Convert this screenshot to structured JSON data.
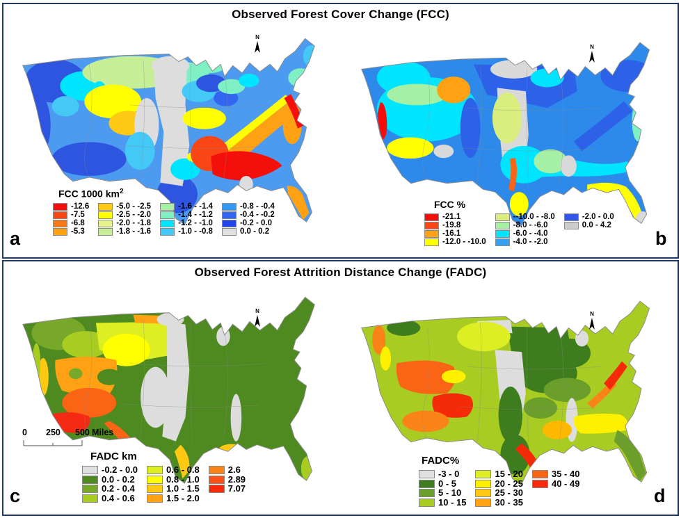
{
  "north_label": "N",
  "colors": {
    "panel_border": "#1F3864",
    "map_outline": "#8a8a8a",
    "background": "#FFFFFF"
  },
  "panels": [
    {
      "title": "Observed Forest Cover Change (FCC)",
      "letter_left": "a",
      "letter_right": "b",
      "maps": [
        {
          "legend": {
            "title": "FCC 1000 km",
            "title_sup": "2",
            "items": [
              {
                "color": "#F50F0A",
                "label": "-12.6"
              },
              {
                "color": "#FA4615",
                "label": "-7.5"
              },
              {
                "color": "#FA7815",
                "label": "-6.8"
              },
              {
                "color": "#FFA113",
                "label": "-5.3"
              },
              {
                "color": "#FFC813",
                "label": "-5.0 - -2.5"
              },
              {
                "color": "#FFFF00",
                "label": "-2.5 - -2.0"
              },
              {
                "color": "#E6F28C",
                "label": "-2.0 - -1.8"
              },
              {
                "color": "#C6EE96",
                "label": "-1.8 - -1.6"
              },
              {
                "color": "#A6F0A6",
                "label": "-1.6 - -1.4"
              },
              {
                "color": "#7FEFC4",
                "label": "-1.4 - -1.2"
              },
              {
                "color": "#00E5FF",
                "label": "-1.2 - -1.0"
              },
              {
                "color": "#44C8F5",
                "label": "-1.0 - -0.8"
              },
              {
                "color": "#3399F5",
                "label": "-0.8 - -0.4"
              },
              {
                "color": "#3366F0",
                "label": "-0.4 - -0.2"
              },
              {
                "color": "#2244E8",
                "label": "-0.2 - 0.0"
              },
              {
                "color": "#E0E0E0",
                "label": "0.0 - 0.2"
              }
            ]
          }
        },
        {
          "legend": {
            "title": "FCC %",
            "items": [
              {
                "color": "#F50F0A",
                "label": "-21.1"
              },
              {
                "color": "#FA4615",
                "label": "-19.8"
              },
              {
                "color": "#FFA113",
                "label": "-16.1"
              },
              {
                "color": "#FFFF00",
                "label": "-12.0 - -10.0"
              },
              {
                "color": "#D9EE7F",
                "label": "--10.0 - -8.0"
              },
              {
                "color": "#A6F0A6",
                "label": "-8.0 - -6.0"
              },
              {
                "color": "#00E5FF",
                "label": "-6.0 - -4.0"
              },
              {
                "color": "#33A1F0",
                "label": "-4.0 - -2.0"
              },
              {
                "color": "#3355E8",
                "label": "-2.0 - 0.0"
              },
              {
                "color": "#CCCCCC",
                "label": "0.0 - 4.2"
              }
            ]
          }
        }
      ]
    },
    {
      "title": "Observed Forest Attrition Distance Change (FADC)",
      "letter_left": "c",
      "letter_right": "d",
      "scalebar": {
        "ticks": [
          "0",
          "250",
          "500"
        ],
        "unit": "Miles"
      },
      "maps": [
        {
          "legend": {
            "title": "FADC km",
            "items": [
              {
                "color": "#E0E0E0",
                "label": "-0.2 - 0.0"
              },
              {
                "color": "#4E8A1F",
                "label": "0.0 - 0.2"
              },
              {
                "color": "#78A82A",
                "label": "0.2 - 0.4"
              },
              {
                "color": "#A8CC22",
                "label": "0.4 - 0.6"
              },
              {
                "color": "#DDEE22",
                "label": "0.6 - 0.8"
              },
              {
                "color": "#FFFF00",
                "label": "0.8 - 1.0"
              },
              {
                "color": "#FFC813",
                "label": "1.0 - 1.5"
              },
              {
                "color": "#FFA113",
                "label": "1.5 - 2.0"
              },
              {
                "color": "#FA8418",
                "label": "2.6"
              },
              {
                "color": "#FA4F15",
                "label": "2.89"
              },
              {
                "color": "#F52A09",
                "label": "7.07"
              }
            ]
          }
        },
        {
          "legend": {
            "title": "FADC%",
            "items": [
              {
                "color": "#E0E0E0",
                "label": "-3 - 0"
              },
              {
                "color": "#3E7D1E",
                "label": "0 - 5"
              },
              {
                "color": "#6B9E2A",
                "label": "5 - 10"
              },
              {
                "color": "#A8CC22",
                "label": "10 - 15"
              },
              {
                "color": "#DDEE22",
                "label": "15 - 20"
              },
              {
                "color": "#FFF000",
                "label": "20 - 25"
              },
              {
                "color": "#FFC813",
                "label": "25 - 30"
              },
              {
                "color": "#FFA113",
                "label": "30 - 35"
              },
              {
                "color": "#FA6415",
                "label": "35 - 40"
              },
              {
                "color": "#F52A09",
                "label": "40 - 49"
              }
            ]
          }
        }
      ]
    }
  ]
}
